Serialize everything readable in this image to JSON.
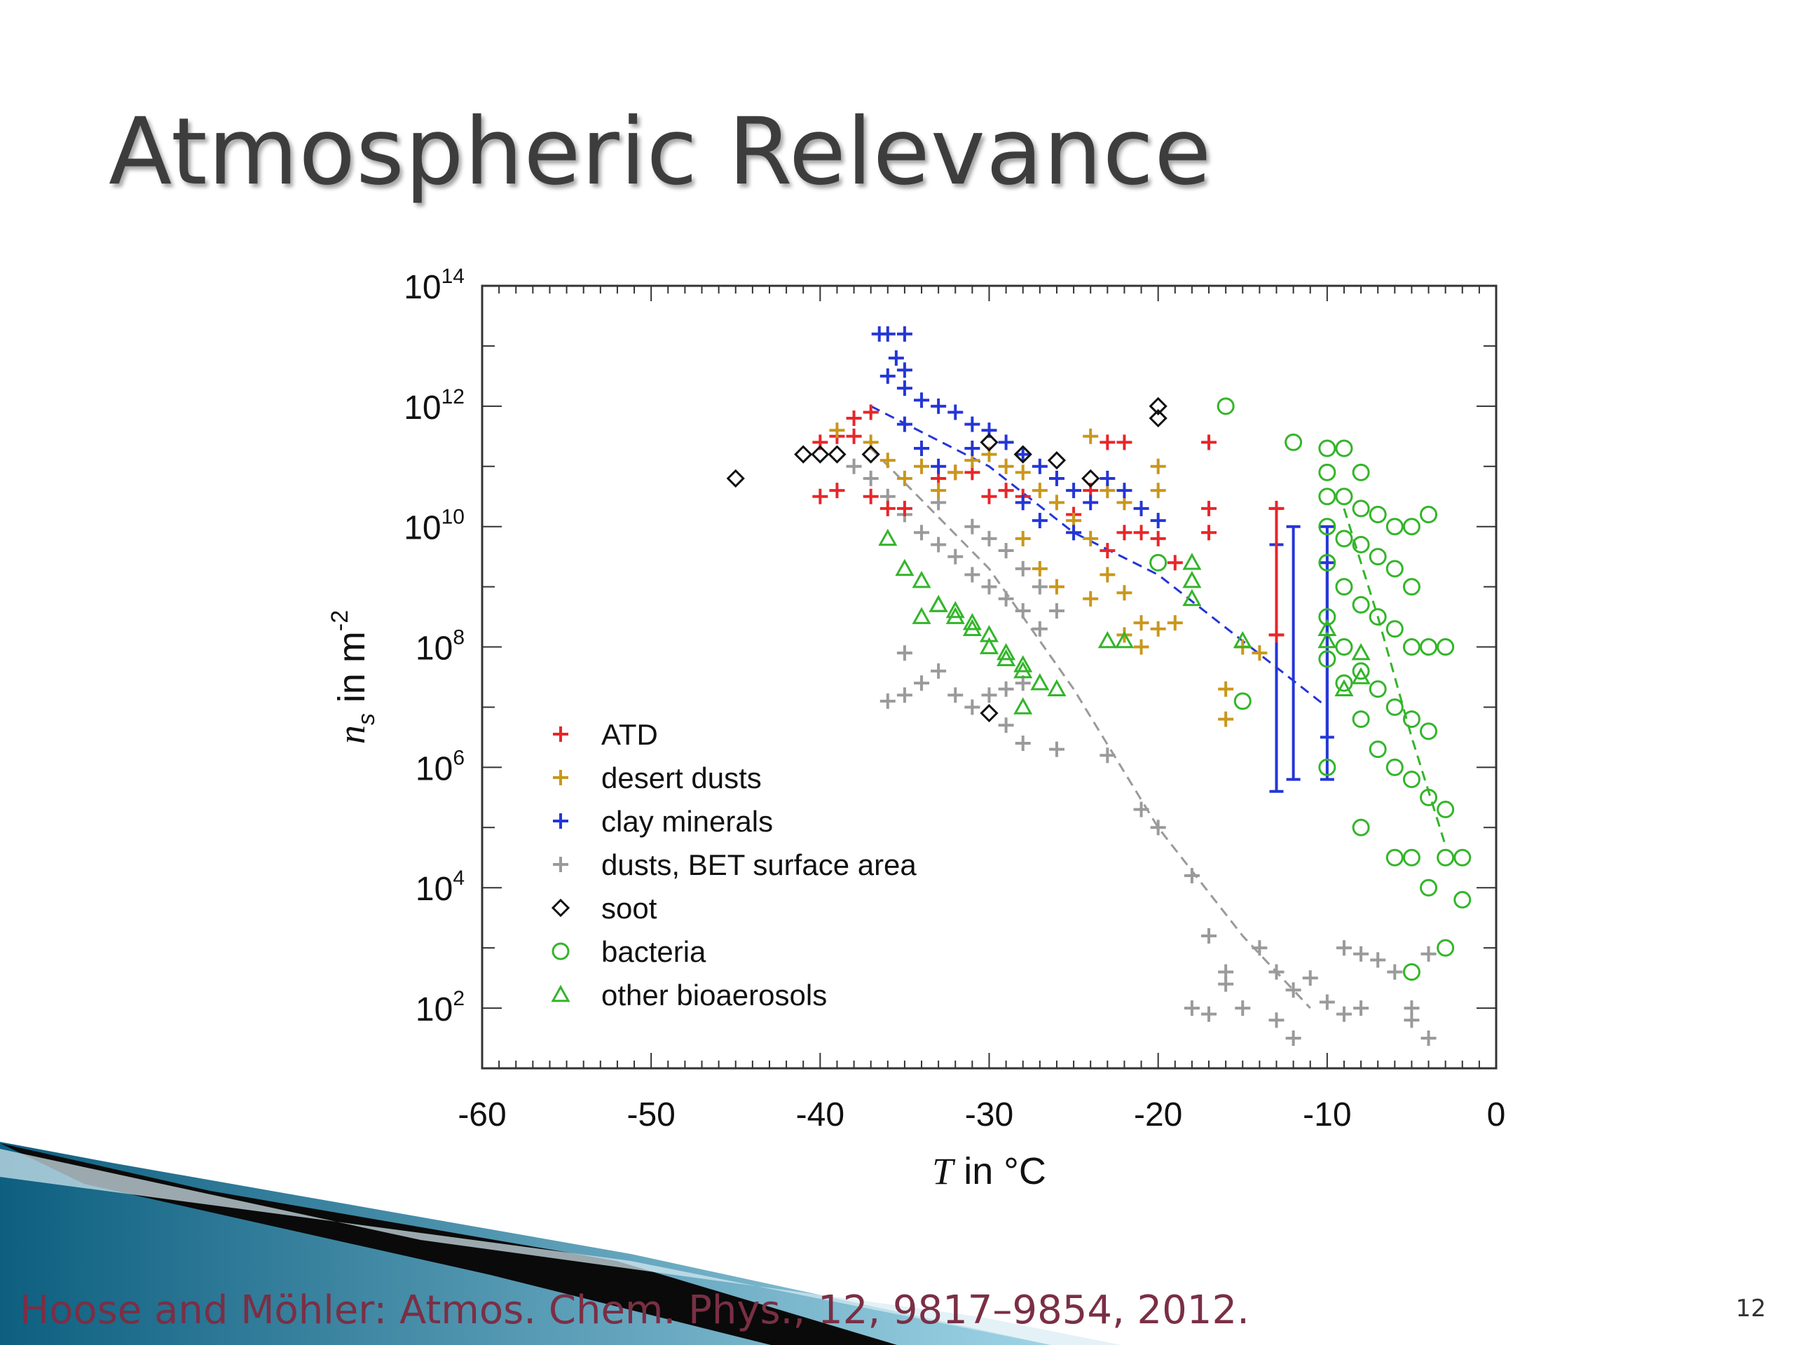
{
  "slide": {
    "title": "Atmospheric Relevance",
    "citation": "Hoose and Möhler: Atmos. Chem. Phys., 12, 9817–9854, 2012.",
    "page_number": "12"
  },
  "colors": {
    "ATD": "#e8262a",
    "desert_dusts": "#c9971b",
    "clay_minerals": "#2436d6",
    "dusts_BET": "#9a9a9a",
    "soot": "#111111",
    "bacteria": "#33b52a",
    "other_bioaerosols": "#33b52a",
    "title_text": "#3d3d3d",
    "citation_text": "#7a2f45",
    "accent_band_dark": "#0d5f80",
    "accent_band_light": "#9fd4e6"
  },
  "chart_data": {
    "type": "scatter",
    "xlabel_italic": "T",
    "xlabel_rest": " in °C",
    "ylabel_italic": "n",
    "ylabel_sub": "s",
    "ylabel_rest": " in m",
    "ylabel_sup": "-2",
    "xlim": [
      -60,
      0
    ],
    "ylog": true,
    "ylim_exp": [
      1,
      14
    ],
    "x_ticks": [
      -60,
      -50,
      -40,
      -30,
      -20,
      -10,
      0
    ],
    "y_tick_exps": [
      2,
      4,
      6,
      8,
      10,
      12,
      14
    ],
    "legend_position": "lower-left",
    "series": [
      {
        "name": "ATD",
        "marker": "plus",
        "color": "#e8262a",
        "points": [
          [
            -40,
            11.4
          ],
          [
            -39,
            11.5
          ],
          [
            -38,
            11.8
          ],
          [
            -37,
            11.9
          ],
          [
            -38,
            11.5
          ],
          [
            -40,
            10.5
          ],
          [
            -39,
            10.6
          ],
          [
            -37,
            10.5
          ],
          [
            -36,
            10.3
          ],
          [
            -35,
            10.3
          ],
          [
            -33,
            10.8
          ],
          [
            -32,
            10.9
          ],
          [
            -31,
            10.9
          ],
          [
            -30,
            10.5
          ],
          [
            -29,
            10.6
          ],
          [
            -28,
            10.5
          ],
          [
            -25,
            10.2
          ],
          [
            -24,
            10.6
          ],
          [
            -23,
            11.4
          ],
          [
            -22,
            11.4
          ],
          [
            -22,
            9.9
          ],
          [
            -21,
            9.9
          ],
          [
            -23,
            9.6
          ],
          [
            -20,
            9.8
          ],
          [
            -19,
            9.4
          ],
          [
            -17,
            11.4
          ],
          [
            -17,
            10.3
          ],
          [
            -17,
            9.9
          ],
          [
            -13,
            10.3
          ],
          [
            -13,
            8.2
          ]
        ]
      },
      {
        "name": "desert dusts",
        "marker": "plus",
        "color": "#c9971b",
        "points": [
          [
            -39,
            11.6
          ],
          [
            -37,
            11.4
          ],
          [
            -36,
            11.1
          ],
          [
            -35,
            10.8
          ],
          [
            -34,
            11.0
          ],
          [
            -33,
            10.6
          ],
          [
            -32,
            10.9
          ],
          [
            -31,
            11.1
          ],
          [
            -30,
            11.2
          ],
          [
            -29,
            11.0
          ],
          [
            -28,
            10.9
          ],
          [
            -27,
            10.6
          ],
          [
            -26,
            10.4
          ],
          [
            -25,
            10.1
          ],
          [
            -24,
            9.8
          ],
          [
            -23,
            9.2
          ],
          [
            -22,
            8.9
          ],
          [
            -21,
            8.4
          ],
          [
            -24,
            11.5
          ],
          [
            -23,
            10.6
          ],
          [
            -22,
            10.4
          ],
          [
            -20,
            10.6
          ],
          [
            -20,
            11.0
          ],
          [
            -28,
            9.8
          ],
          [
            -27,
            9.3
          ],
          [
            -26,
            9.0
          ],
          [
            -24,
            8.8
          ],
          [
            -22,
            8.2
          ],
          [
            -21,
            8.0
          ],
          [
            -20,
            8.3
          ],
          [
            -19,
            8.4
          ],
          [
            -16,
            7.3
          ],
          [
            -16,
            6.8
          ],
          [
            -15,
            8.0
          ],
          [
            -14,
            7.9
          ]
        ]
      },
      {
        "name": "clay minerals",
        "marker": "plus",
        "color": "#2436d6",
        "points": [
          [
            -36.5,
            13.2
          ],
          [
            -36,
            13.2
          ],
          [
            -35,
            13.2
          ],
          [
            -35.5,
            12.8
          ],
          [
            -35,
            12.6
          ],
          [
            -36,
            12.5
          ],
          [
            -35,
            12.3
          ],
          [
            -34,
            12.1
          ],
          [
            -33,
            12.0
          ],
          [
            -32,
            11.9
          ],
          [
            -31,
            11.7
          ],
          [
            -30,
            11.6
          ],
          [
            -29,
            11.4
          ],
          [
            -28,
            11.2
          ],
          [
            -27,
            11.0
          ],
          [
            -26,
            10.8
          ],
          [
            -25,
            10.6
          ],
          [
            -24,
            10.4
          ],
          [
            -23,
            10.8
          ],
          [
            -22,
            10.6
          ],
          [
            -21,
            10.3
          ],
          [
            -20,
            10.1
          ],
          [
            -35,
            11.7
          ],
          [
            -34,
            11.3
          ],
          [
            -33,
            11.0
          ],
          [
            -31,
            11.3
          ],
          [
            -28,
            10.4
          ],
          [
            -27,
            10.1
          ],
          [
            -25,
            9.9
          ]
        ]
      },
      {
        "name": "dusts, BET surface area",
        "marker": "plus",
        "color": "#9a9a9a",
        "points": [
          [
            -38,
            11.0
          ],
          [
            -37,
            10.8
          ],
          [
            -36,
            10.5
          ],
          [
            -35,
            10.2
          ],
          [
            -34,
            9.9
          ],
          [
            -33,
            9.7
          ],
          [
            -32,
            9.5
          ],
          [
            -31,
            9.2
          ],
          [
            -30,
            9.0
          ],
          [
            -29,
            8.8
          ],
          [
            -28,
            8.6
          ],
          [
            -27,
            8.3
          ],
          [
            -33,
            10.4
          ],
          [
            -31,
            10.0
          ],
          [
            -30,
            9.8
          ],
          [
            -29,
            9.6
          ],
          [
            -28,
            9.3
          ],
          [
            -27,
            9.0
          ],
          [
            -26,
            8.6
          ],
          [
            -35,
            7.9
          ],
          [
            -34,
            7.4
          ],
          [
            -33,
            7.6
          ],
          [
            -32,
            7.2
          ],
          [
            -31,
            7.0
          ],
          [
            -30,
            7.2
          ],
          [
            -29,
            7.3
          ],
          [
            -28,
            7.4
          ],
          [
            -29,
            6.7
          ],
          [
            -28,
            6.4
          ],
          [
            -35,
            7.2
          ],
          [
            -36,
            7.1
          ],
          [
            -26,
            6.3
          ],
          [
            -23,
            6.2
          ],
          [
            -21,
            5.3
          ],
          [
            -20,
            5.0
          ],
          [
            -18,
            4.2
          ],
          [
            -17,
            3.2
          ],
          [
            -16,
            2.6
          ],
          [
            -16,
            2.4
          ],
          [
            -15,
            2.0
          ],
          [
            -14,
            3.0
          ],
          [
            -13,
            2.6
          ],
          [
            -12,
            2.3
          ],
          [
            -11,
            2.5
          ],
          [
            -10,
            2.1
          ],
          [
            -9,
            3.0
          ],
          [
            -8,
            2.9
          ],
          [
            -7,
            2.8
          ],
          [
            -6,
            2.6
          ],
          [
            -5,
            2.0
          ],
          [
            -4,
            2.9
          ],
          [
            -18,
            2.0
          ],
          [
            -17,
            1.9
          ],
          [
            -13,
            1.8
          ],
          [
            -12,
            1.5
          ],
          [
            -9,
            1.9
          ],
          [
            -8,
            2.0
          ],
          [
            -5,
            1.8
          ],
          [
            -4,
            1.5
          ]
        ]
      },
      {
        "name": "soot",
        "marker": "diamond",
        "color": "#111111",
        "points": [
          [
            -45,
            10.8
          ],
          [
            -41,
            11.2
          ],
          [
            -40,
            11.2
          ],
          [
            -39,
            11.2
          ],
          [
            -37,
            11.2
          ],
          [
            -30,
            11.4
          ],
          [
            -28,
            11.2
          ],
          [
            -26,
            11.1
          ],
          [
            -24,
            10.8
          ],
          [
            -20,
            11.8
          ],
          [
            -20,
            12.0
          ],
          [
            -30,
            6.9
          ]
        ]
      },
      {
        "name": "bacteria",
        "marker": "circle",
        "color": "#33b52a",
        "points": [
          [
            -16,
            12.0
          ],
          [
            -12,
            11.4
          ],
          [
            -10,
            11.3
          ],
          [
            -9,
            11.3
          ],
          [
            -10,
            10.9
          ],
          [
            -8,
            10.9
          ],
          [
            -10,
            10.5
          ],
          [
            -9,
            10.5
          ],
          [
            -8,
            10.3
          ],
          [
            -7,
            10.2
          ],
          [
            -6,
            10.0
          ],
          [
            -5,
            10.0
          ],
          [
            -4,
            10.2
          ],
          [
            -10,
            10.0
          ],
          [
            -9,
            9.8
          ],
          [
            -8,
            9.7
          ],
          [
            -7,
            9.5
          ],
          [
            -6,
            9.3
          ],
          [
            -5,
            9.0
          ],
          [
            -10,
            9.4
          ],
          [
            -9,
            9.0
          ],
          [
            -8,
            8.7
          ],
          [
            -7,
            8.5
          ],
          [
            -6,
            8.3
          ],
          [
            -5,
            8.0
          ],
          [
            -4,
            8.0
          ],
          [
            -3,
            8.0
          ],
          [
            -10,
            8.5
          ],
          [
            -9,
            8.0
          ],
          [
            -8,
            7.6
          ],
          [
            -7,
            7.3
          ],
          [
            -6,
            7.0
          ],
          [
            -5,
            6.8
          ],
          [
            -4,
            6.6
          ],
          [
            -10,
            7.8
          ],
          [
            -9,
            7.4
          ],
          [
            -8,
            6.8
          ],
          [
            -7,
            6.3
          ],
          [
            -6,
            6.0
          ],
          [
            -5,
            5.8
          ],
          [
            -4,
            5.5
          ],
          [
            -3,
            5.3
          ],
          [
            -10,
            6.0
          ],
          [
            -8,
            5.0
          ],
          [
            -6,
            4.5
          ],
          [
            -5,
            4.5
          ],
          [
            -4,
            4.0
          ],
          [
            -3,
            4.5
          ],
          [
            -2,
            4.5
          ],
          [
            -2,
            3.8
          ],
          [
            -3,
            3.0
          ],
          [
            -5,
            2.6
          ],
          [
            -20,
            9.4
          ],
          [
            -15,
            7.1
          ]
        ]
      },
      {
        "name": "other bioaerosols",
        "marker": "triangle",
        "color": "#33b52a",
        "points": [
          [
            -36,
            9.8
          ],
          [
            -35,
            9.3
          ],
          [
            -34,
            9.1
          ],
          [
            -33,
            8.7
          ],
          [
            -32,
            8.5
          ],
          [
            -31,
            8.3
          ],
          [
            -30,
            8.0
          ],
          [
            -29,
            7.8
          ],
          [
            -28,
            7.6
          ],
          [
            -27,
            7.4
          ],
          [
            -34,
            8.5
          ],
          [
            -33,
            8.7
          ],
          [
            -32,
            8.6
          ],
          [
            -31,
            8.4
          ],
          [
            -30,
            8.2
          ],
          [
            -29,
            7.9
          ],
          [
            -28,
            7.7
          ],
          [
            -26,
            7.3
          ],
          [
            -28,
            7.0
          ],
          [
            -18,
            9.4
          ],
          [
            -18,
            9.1
          ],
          [
            -18,
            8.8
          ],
          [
            -23,
            8.1
          ],
          [
            -22,
            8.1
          ],
          [
            -15,
            8.1
          ],
          [
            -10,
            8.3
          ],
          [
            -10,
            8.1
          ],
          [
            -8,
            7.9
          ],
          [
            -8,
            7.5
          ],
          [
            -9,
            7.3
          ]
        ]
      }
    ],
    "fit_lines": [
      {
        "color": "#2436d6",
        "points": [
          [
            -37,
            12.0
          ],
          [
            -30,
            11.0
          ],
          [
            -25,
            9.9
          ],
          [
            -20,
            9.2
          ],
          [
            -15,
            8.1
          ],
          [
            -10,
            7.0
          ]
        ]
      },
      {
        "color": "#9a9a9a",
        "points": [
          [
            -37,
            11.3
          ],
          [
            -30,
            9.3
          ],
          [
            -25,
            7.3
          ],
          [
            -20,
            5.0
          ],
          [
            -15,
            3.2
          ],
          [
            -11,
            2.0
          ]
        ]
      },
      {
        "color": "#33b52a",
        "points": [
          [
            -9,
            10.3
          ],
          [
            -7,
            8.5
          ],
          [
            -5,
            6.5
          ],
          [
            -3,
            4.7
          ]
        ]
      }
    ],
    "error_bars": [
      {
        "x": -13,
        "color": "#2436d6",
        "low": 5.6,
        "high": 9.7
      },
      {
        "x": -12,
        "color": "#2436d6",
        "low": 5.8,
        "high": 10.0
      },
      {
        "x": -10,
        "color": "#2436d6",
        "low": 5.8,
        "high": 10.0
      },
      {
        "x": -13,
        "color": "#e8262a",
        "low": 8.2,
        "high": 10.3
      },
      {
        "x": -10,
        "color": "#2436d6",
        "low": 6.5,
        "high": 9.4
      }
    ]
  }
}
